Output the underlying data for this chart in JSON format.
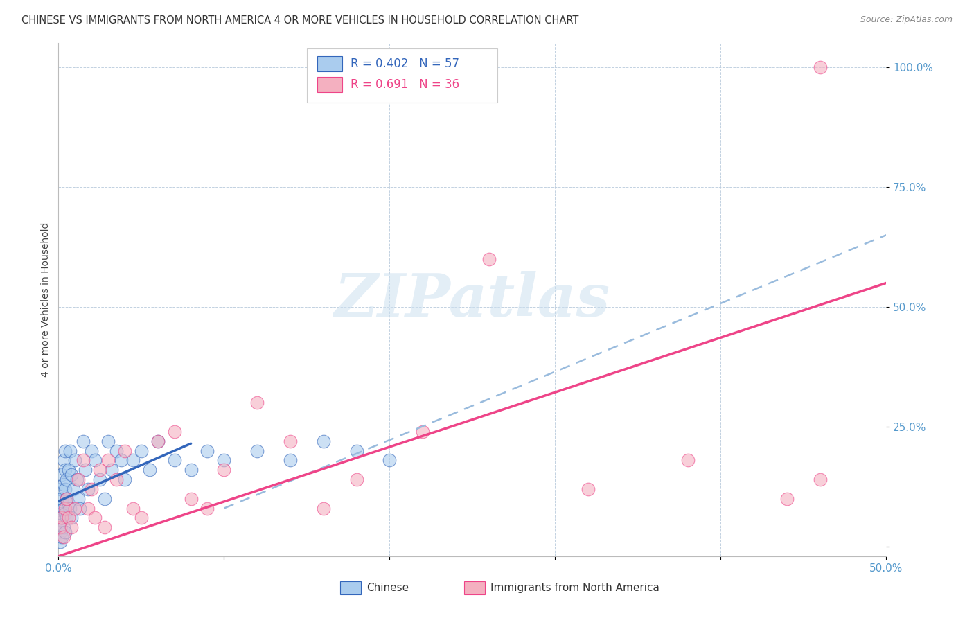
{
  "title": "CHINESE VS IMMIGRANTS FROM NORTH AMERICA 4 OR MORE VEHICLES IN HOUSEHOLD CORRELATION CHART",
  "source": "Source: ZipAtlas.com",
  "ylabel": "4 or more Vehicles in Household",
  "xlim": [
    0.0,
    0.5
  ],
  "ylim": [
    -0.02,
    1.05
  ],
  "legend1_r": "0.402",
  "legend1_n": "57",
  "legend2_r": "0.691",
  "legend2_n": "36",
  "series1_label": "Chinese",
  "series2_label": "Immigrants from North America",
  "series1_color": "#aaccee",
  "series2_color": "#f4b0c0",
  "line1_color": "#3366bb",
  "line2_color": "#ee4488",
  "dashed_line_color": "#99bbdd",
  "watermark": "ZIPatlas",
  "background_color": "#ffffff",
  "chinese_x": [
    0.001,
    0.001,
    0.001,
    0.001,
    0.001,
    0.002,
    0.002,
    0.002,
    0.002,
    0.003,
    0.003,
    0.003,
    0.003,
    0.004,
    0.004,
    0.004,
    0.004,
    0.004,
    0.005,
    0.005,
    0.005,
    0.006,
    0.006,
    0.007,
    0.007,
    0.008,
    0.008,
    0.009,
    0.01,
    0.011,
    0.012,
    0.013,
    0.015,
    0.016,
    0.018,
    0.02,
    0.022,
    0.025,
    0.028,
    0.03,
    0.032,
    0.035,
    0.038,
    0.04,
    0.045,
    0.05,
    0.055,
    0.06,
    0.07,
    0.08,
    0.09,
    0.1,
    0.12,
    0.14,
    0.16,
    0.18,
    0.2
  ],
  "chinese_y": [
    0.12,
    0.08,
    0.05,
    0.03,
    0.01,
    0.15,
    0.1,
    0.07,
    0.02,
    0.18,
    0.13,
    0.08,
    0.04,
    0.2,
    0.16,
    0.12,
    0.07,
    0.03,
    0.14,
    0.1,
    0.06,
    0.16,
    0.09,
    0.2,
    0.08,
    0.15,
    0.06,
    0.12,
    0.18,
    0.14,
    0.1,
    0.08,
    0.22,
    0.16,
    0.12,
    0.2,
    0.18,
    0.14,
    0.1,
    0.22,
    0.16,
    0.2,
    0.18,
    0.14,
    0.18,
    0.2,
    0.16,
    0.22,
    0.18,
    0.16,
    0.2,
    0.18,
    0.2,
    0.18,
    0.22,
    0.2,
    0.18
  ],
  "na_x": [
    0.001,
    0.002,
    0.003,
    0.004,
    0.005,
    0.006,
    0.008,
    0.01,
    0.012,
    0.015,
    0.018,
    0.02,
    0.022,
    0.025,
    0.028,
    0.03,
    0.035,
    0.04,
    0.045,
    0.05,
    0.06,
    0.07,
    0.08,
    0.09,
    0.1,
    0.12,
    0.14,
    0.16,
    0.18,
    0.22,
    0.26,
    0.32,
    0.38,
    0.44,
    0.46,
    0.46
  ],
  "na_y": [
    0.04,
    0.06,
    0.02,
    0.08,
    0.1,
    0.06,
    0.04,
    0.08,
    0.14,
    0.18,
    0.08,
    0.12,
    0.06,
    0.16,
    0.04,
    0.18,
    0.14,
    0.2,
    0.08,
    0.06,
    0.22,
    0.24,
    0.1,
    0.08,
    0.16,
    0.3,
    0.22,
    0.08,
    0.14,
    0.24,
    0.6,
    0.12,
    0.18,
    0.1,
    0.14,
    1.0
  ],
  "blue_line_x0": 0.0,
  "blue_line_x1": 0.08,
  "blue_line_y0": 0.095,
  "blue_line_y1": 0.215,
  "dashed_line_x0": 0.1,
  "dashed_line_x1": 0.5,
  "dashed_line_y0": 0.08,
  "dashed_line_y1": 0.65,
  "pink_line_x0": 0.0,
  "pink_line_x1": 0.5,
  "pink_line_y0": -0.02,
  "pink_line_y1": 0.55
}
